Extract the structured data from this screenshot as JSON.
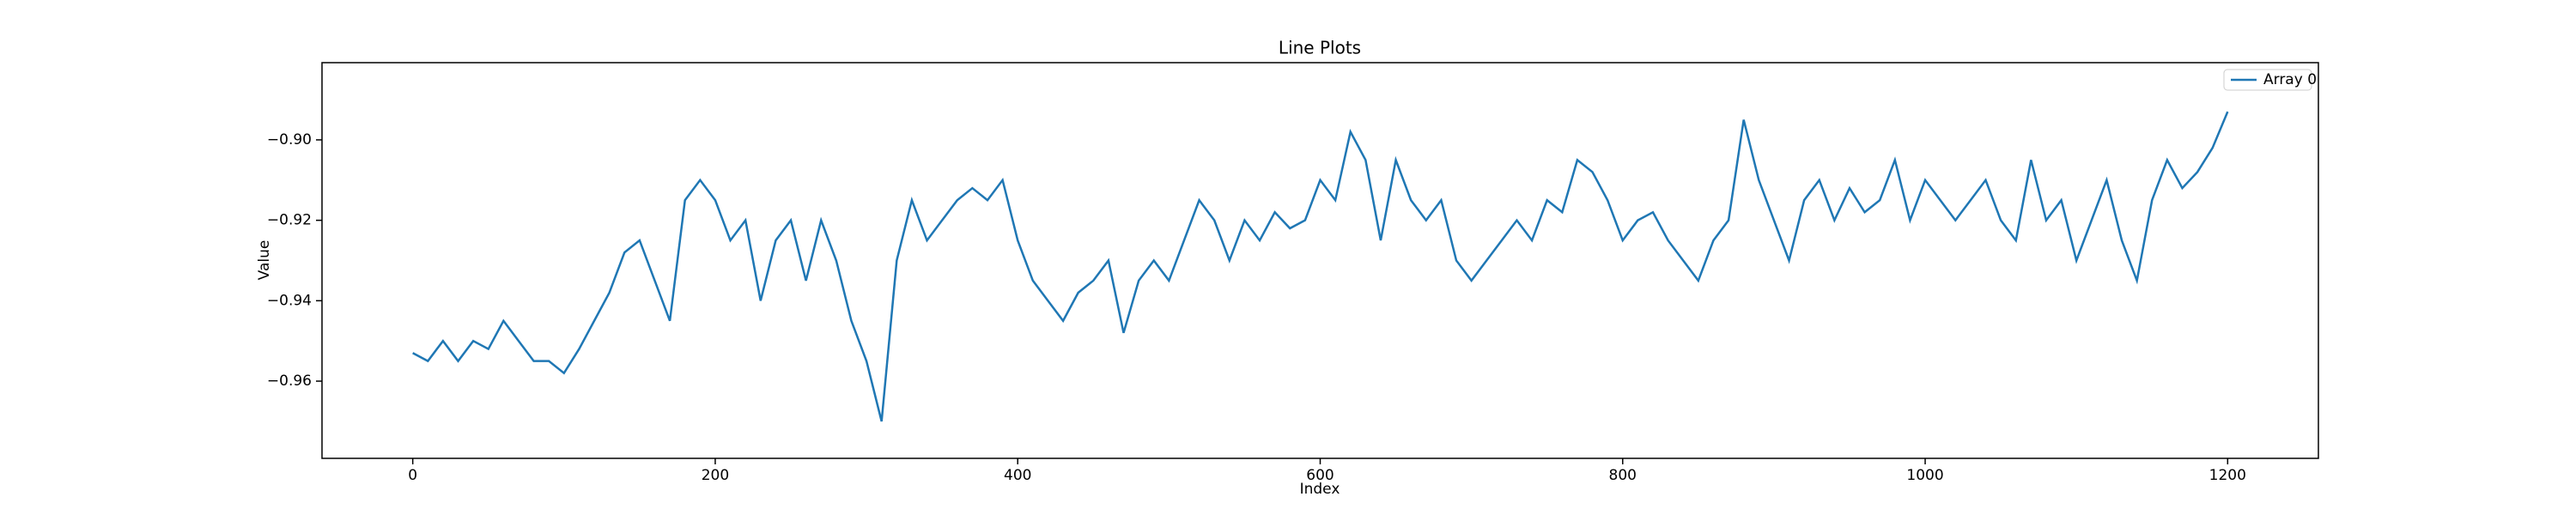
{
  "chart_data": {
    "type": "line",
    "title": "Line Plots",
    "xlabel": "Index",
    "ylabel": "Value",
    "x": [
      0,
      10,
      20,
      30,
      40,
      50,
      60,
      70,
      80,
      90,
      100,
      110,
      120,
      130,
      140,
      150,
      160,
      170,
      180,
      190,
      200,
      210,
      220,
      230,
      240,
      250,
      260,
      270,
      280,
      290,
      300,
      310,
      320,
      330,
      340,
      350,
      360,
      370,
      380,
      390,
      400,
      410,
      420,
      430,
      440,
      450,
      460,
      470,
      480,
      490,
      500,
      510,
      520,
      530,
      540,
      550,
      560,
      570,
      580,
      590,
      600,
      610,
      620,
      630,
      640,
      650,
      660,
      670,
      680,
      690,
      700,
      710,
      720,
      730,
      740,
      750,
      760,
      770,
      780,
      790,
      800,
      810,
      820,
      830,
      840,
      850,
      860,
      870,
      880,
      890,
      900,
      910,
      920,
      930,
      940,
      950,
      960,
      970,
      980,
      990,
      1000,
      1010,
      1020,
      1030,
      1040,
      1050,
      1060,
      1070,
      1080,
      1090,
      1100,
      1110,
      1120,
      1130,
      1140,
      1150,
      1160,
      1170,
      1180,
      1190,
      1200
    ],
    "series": [
      {
        "name": "Array 0",
        "color": "#1f77b4",
        "values": [
          -0.953,
          -0.955,
          -0.95,
          -0.955,
          -0.95,
          -0.952,
          -0.945,
          -0.95,
          -0.955,
          -0.955,
          -0.958,
          -0.952,
          -0.945,
          -0.938,
          -0.928,
          -0.925,
          -0.935,
          -0.945,
          -0.915,
          -0.91,
          -0.915,
          -0.925,
          -0.92,
          -0.94,
          -0.925,
          -0.92,
          -0.935,
          -0.92,
          -0.93,
          -0.945,
          -0.955,
          -0.97,
          -0.93,
          -0.915,
          -0.925,
          -0.92,
          -0.915,
          -0.912,
          -0.915,
          -0.91,
          -0.925,
          -0.935,
          -0.94,
          -0.945,
          -0.938,
          -0.935,
          -0.93,
          -0.948,
          -0.935,
          -0.93,
          -0.935,
          -0.925,
          -0.915,
          -0.92,
          -0.93,
          -0.92,
          -0.925,
          -0.918,
          -0.922,
          -0.92,
          -0.91,
          -0.915,
          -0.898,
          -0.905,
          -0.925,
          -0.905,
          -0.915,
          -0.92,
          -0.915,
          -0.93,
          -0.935,
          -0.93,
          -0.925,
          -0.92,
          -0.925,
          -0.915,
          -0.918,
          -0.905,
          -0.908,
          -0.915,
          -0.925,
          -0.92,
          -0.918,
          -0.925,
          -0.93,
          -0.935,
          -0.925,
          -0.92,
          -0.895,
          -0.91,
          -0.92,
          -0.93,
          -0.915,
          -0.91,
          -0.92,
          -0.912,
          -0.918,
          -0.915,
          -0.905,
          -0.92,
          -0.91,
          -0.915,
          -0.92,
          -0.915,
          -0.91,
          -0.92,
          -0.925,
          -0.905,
          -0.92,
          -0.915,
          -0.93,
          -0.92,
          -0.91,
          -0.925,
          -0.935,
          -0.915,
          -0.905,
          -0.912,
          -0.908,
          -0.902,
          -0.893
        ]
      }
    ],
    "xlim": [
      -60,
      1260
    ],
    "xticks": [
      0,
      200,
      400,
      600,
      800,
      1000,
      1200
    ],
    "ylim": [
      -0.9792,
      -0.8808
    ],
    "yticks": [
      {
        "value": -0.96,
        "label": "−0.96"
      },
      {
        "value": -0.94,
        "label": "−0.94"
      },
      {
        "value": -0.92,
        "label": "−0.92"
      },
      {
        "value": -0.9,
        "label": "−0.90"
      }
    ],
    "legend": "upper right"
  }
}
